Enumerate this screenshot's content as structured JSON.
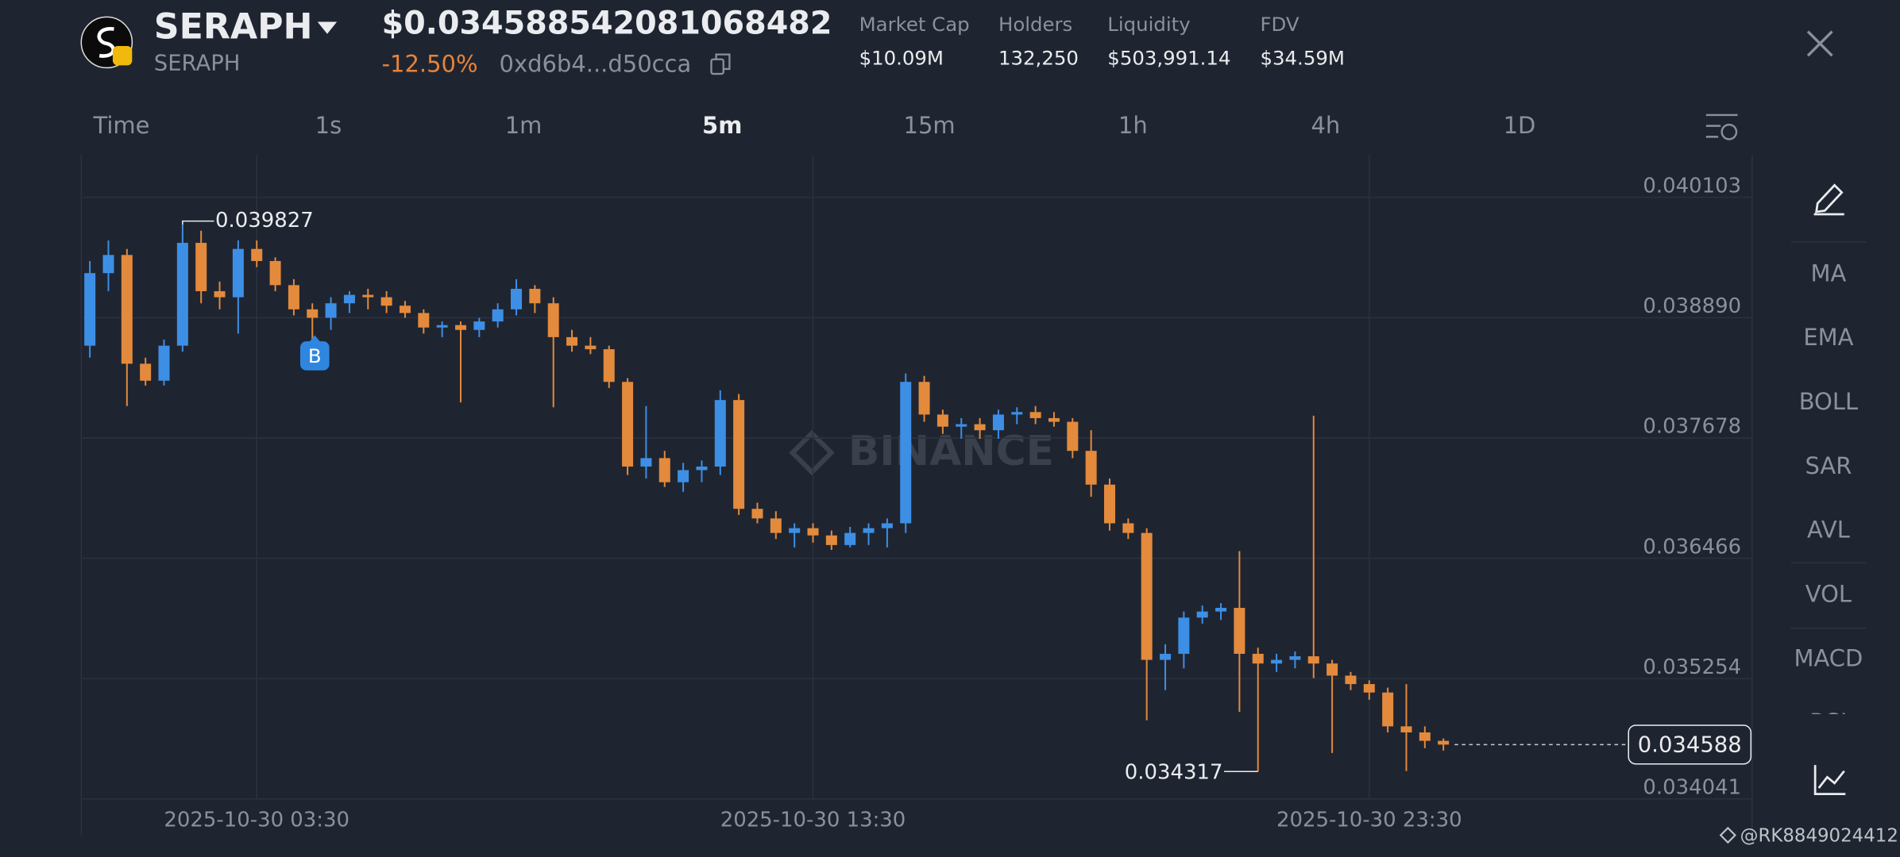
{
  "header": {
    "symbol": "SERAPH",
    "subtitle": "SERAPH",
    "price": "$0.034588542081068482",
    "change": "-12.50%",
    "address": "0xd6b4...d50cca",
    "stats": [
      {
        "label": "Market Cap",
        "value": "$10.09M"
      },
      {
        "label": "Holders",
        "value": "132,250"
      },
      {
        "label": "Liquidity",
        "value": "$503,991.14"
      },
      {
        "label": "FDV",
        "value": "$34.59M"
      }
    ]
  },
  "intervals": {
    "items": [
      "Time",
      "1s",
      "1m",
      "5m",
      "15m",
      "1h",
      "4h",
      "1D"
    ],
    "active": "5m"
  },
  "indicators": [
    "MA",
    "EMA",
    "BOLL",
    "SAR",
    "AVL",
    "VOL",
    "MACD",
    "RSI"
  ],
  "watermark": "BINANCE",
  "footer": "@RK8849024412",
  "chart_data": {
    "type": "candlestick",
    "x": [
      "2025-10-30 00:30",
      "2025-10-30 00:50",
      "2025-10-30 01:10",
      "2025-10-30 01:30",
      "2025-10-30 01:50",
      "2025-10-30 02:10",
      "2025-10-30 02:30",
      "2025-10-30 02:50",
      "2025-10-30 03:10",
      "2025-10-30 03:30",
      "2025-10-30 03:50",
      "2025-10-30 04:10",
      "2025-10-30 04:30",
      "2025-10-30 04:50",
      "2025-10-30 05:10",
      "2025-10-30 05:30",
      "2025-10-30 05:50",
      "2025-10-30 06:10",
      "2025-10-30 06:30",
      "2025-10-30 06:50",
      "2025-10-30 07:10",
      "2025-10-30 07:30",
      "2025-10-30 07:50",
      "2025-10-30 08:10",
      "2025-10-30 08:30",
      "2025-10-30 08:50",
      "2025-10-30 09:10",
      "2025-10-30 09:30",
      "2025-10-30 09:50",
      "2025-10-30 10:10",
      "2025-10-30 10:30",
      "2025-10-30 10:50",
      "2025-10-30 11:10",
      "2025-10-30 11:30",
      "2025-10-30 11:50",
      "2025-10-30 12:10",
      "2025-10-30 12:30",
      "2025-10-30 12:50",
      "2025-10-30 13:10",
      "2025-10-30 13:30",
      "2025-10-30 13:50",
      "2025-10-30 14:10",
      "2025-10-30 14:30",
      "2025-10-30 14:50",
      "2025-10-30 15:10",
      "2025-10-30 15:30",
      "2025-10-30 15:50",
      "2025-10-30 16:10",
      "2025-10-30 16:30",
      "2025-10-30 16:50",
      "2025-10-30 17:10",
      "2025-10-30 17:30",
      "2025-10-30 17:50",
      "2025-10-30 18:10",
      "2025-10-30 18:30",
      "2025-10-30 18:50",
      "2025-10-30 19:10",
      "2025-10-30 19:30",
      "2025-10-30 19:50",
      "2025-10-30 20:10",
      "2025-10-30 20:30",
      "2025-10-30 20:50",
      "2025-10-30 21:10",
      "2025-10-30 21:30",
      "2025-10-30 21:50",
      "2025-10-30 22:10",
      "2025-10-30 22:30",
      "2025-10-30 22:50",
      "2025-10-30 23:10",
      "2025-10-30 23:30",
      "2025-10-30 23:50",
      "2025-10-31 00:10",
      "2025-10-31 00:30",
      "2025-10-31 00:50"
    ],
    "open": [
      0.038608,
      0.039339,
      0.039522,
      0.038426,
      0.038255,
      0.038608,
      0.039644,
      0.039157,
      0.039096,
      0.039583,
      0.039461,
      0.039218,
      0.038974,
      0.038889,
      0.039035,
      0.03912,
      0.039096,
      0.039011,
      0.038937,
      0.038791,
      0.038815,
      0.038767,
      0.038852,
      0.038974,
      0.039181,
      0.039035,
      0.038694,
      0.038608,
      0.038572,
      0.038243,
      0.03739,
      0.037475,
      0.037232,
      0.037354,
      0.03739,
      0.03806,
      0.036964,
      0.036867,
      0.036721,
      0.036769,
      0.036696,
      0.036599,
      0.036721,
      0.036769,
      0.036818,
      0.038243,
      0.037914,
      0.037792,
      0.037817,
      0.037756,
      0.037914,
      0.037939,
      0.037878,
      0.037841,
      0.037548,
      0.037208,
      0.036818,
      0.036721,
      0.035442,
      0.035503,
      0.035868,
      0.035929,
      0.035966,
      0.035503,
      0.035405,
      0.035442,
      0.035478,
      0.035405,
      0.035283,
      0.035198,
      0.035113,
      0.034772,
      0.034711,
      0.034626
    ],
    "high": [
      0.039461,
      0.039668,
      0.039583,
      0.038487,
      0.038669,
      0.039827,
      0.039766,
      0.039254,
      0.039668,
      0.039668,
      0.039498,
      0.039278,
      0.039035,
      0.039096,
      0.039157,
      0.039181,
      0.039157,
      0.039059,
      0.038974,
      0.038852,
      0.038852,
      0.038889,
      0.039035,
      0.039278,
      0.039218,
      0.039096,
      0.038767,
      0.038694,
      0.038608,
      0.03828,
      0.037999,
      0.037548,
      0.037427,
      0.037451,
      0.038158,
      0.038121,
      0.037025,
      0.03694,
      0.036818,
      0.036818,
      0.036745,
      0.036782,
      0.036818,
      0.036867,
      0.038328,
      0.038304,
      0.037963,
      0.037878,
      0.037878,
      0.037963,
      0.037987,
      0.037999,
      0.037939,
      0.037878,
      0.037756,
      0.037269,
      0.036867,
      0.036769,
      0.0356,
      0.035929,
      0.03599,
      0.036014,
      0.036538,
      0.035564,
      0.035503,
      0.035527,
      0.037902,
      0.035442,
      0.03532,
      0.035235,
      0.035162,
      0.035198,
      0.034772,
      0.03465
    ],
    "low": [
      0.038487,
      0.039157,
      0.037999,
      0.038206,
      0.038206,
      0.038548,
      0.039035,
      0.038974,
      0.03873,
      0.0394,
      0.039157,
      0.038913,
      0.038365,
      0.038767,
      0.038937,
      0.038974,
      0.038937,
      0.038889,
      0.03873,
      0.038694,
      0.038036,
      0.038694,
      0.038791,
      0.038913,
      0.038937,
      0.037987,
      0.038548,
      0.038523,
      0.038182,
      0.037305,
      0.037269,
      0.037184,
      0.037135,
      0.037232,
      0.037305,
      0.036903,
      0.036818,
      0.03666,
      0.036575,
      0.036623,
      0.03655,
      0.036575,
      0.036599,
      0.036575,
      0.036721,
      0.037841,
      0.037719,
      0.03767,
      0.03767,
      0.03767,
      0.037817,
      0.037817,
      0.037792,
      0.037475,
      0.037086,
      0.036745,
      0.03666,
      0.034833,
      0.035137,
      0.035357,
      0.035807,
      0.035844,
      0.034918,
      0.034317,
      0.03532,
      0.035357,
      0.035259,
      0.034504,
      0.035137,
      0.03504,
      0.034711,
      0.034321,
      0.034552,
      0.034528
    ],
    "close": [
      0.039339,
      0.039522,
      0.038426,
      0.038255,
      0.038608,
      0.039644,
      0.039157,
      0.039096,
      0.039583,
      0.039461,
      0.039218,
      0.038974,
      0.038889,
      0.039035,
      0.03912,
      0.039096,
      0.039011,
      0.038937,
      0.038791,
      0.038815,
      0.038767,
      0.038852,
      0.038974,
      0.039181,
      0.039035,
      0.038694,
      0.038608,
      0.038572,
      0.038243,
      0.03739,
      0.037475,
      0.037232,
      0.037354,
      0.03739,
      0.03806,
      0.036964,
      0.036867,
      0.036721,
      0.036769,
      0.036696,
      0.036599,
      0.036721,
      0.036769,
      0.036818,
      0.038243,
      0.037914,
      0.037792,
      0.037817,
      0.037756,
      0.037914,
      0.037939,
      0.037878,
      0.037841,
      0.037548,
      0.037208,
      0.036818,
      0.036721,
      0.035442,
      0.035503,
      0.035868,
      0.035929,
      0.035966,
      0.035503,
      0.035405,
      0.035442,
      0.035478,
      0.035405,
      0.035283,
      0.035198,
      0.035113,
      0.034772,
      0.034711,
      0.034626,
      0.034588
    ],
    "up_color": "#3d8fe6",
    "down_color": "#e38a3d",
    "xlim": [
      "2025-10-30 00:22",
      "2025-10-31 04:11"
    ],
    "xticks": [
      "2025-10-30 03:30",
      "2025-10-30 13:30",
      "2025-10-30 23:30"
    ],
    "ylim": [
      0.034041,
      0.04053
    ],
    "yticks": [
      0.040103,
      {
        "value": 0.03889,
        "label": "0.038890"
      },
      0.037678,
      0.036466,
      0.035254,
      0.034041
    ],
    "grid": true,
    "high_marker": 0.039827,
    "low_marker": 0.034317,
    "last_price": 0.034588,
    "trade_marker": "B"
  }
}
